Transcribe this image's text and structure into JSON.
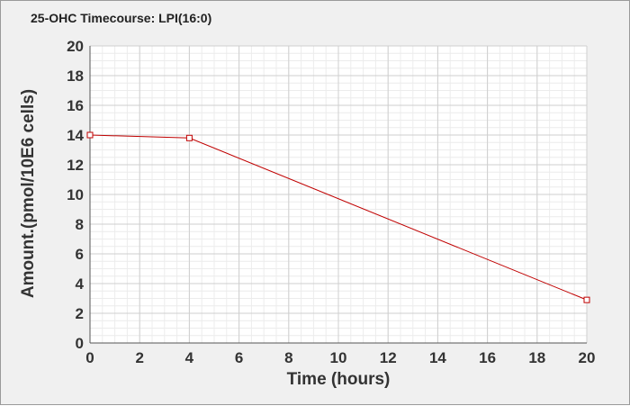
{
  "chart_data": {
    "type": "line",
    "title": "25-OHC Timecourse: LPI(16:0)",
    "xlabel": "Time (hours)",
    "ylabel": "Amount.(pmol/10E6 cells)",
    "xlim": [
      0,
      20
    ],
    "ylim": [
      0,
      20
    ],
    "xticks": [
      "0",
      "2",
      "4",
      "6",
      "8",
      "10",
      "12",
      "14",
      "16",
      "18",
      "20"
    ],
    "yticks": [
      "0",
      "2",
      "4",
      "6",
      "8",
      "10",
      "12",
      "14",
      "16",
      "18",
      "20"
    ],
    "grid": true,
    "legend": false,
    "series": [
      {
        "color": "#c00000",
        "marker": "open-square",
        "x": [
          0,
          4,
          20
        ],
        "y": [
          14.0,
          13.8,
          2.9
        ]
      }
    ]
  }
}
